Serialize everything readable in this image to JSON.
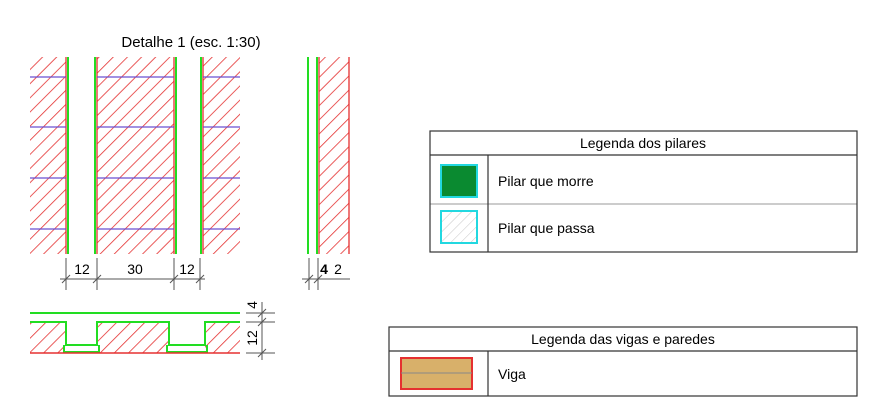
{
  "detail": {
    "title": "Detalhe 1 (esc. 1:30)",
    "dims_plan": [
      "12",
      "30",
      "12"
    ],
    "dim_right_a": "4",
    "dim_right_b": "2",
    "dims_section": [
      "4",
      "12"
    ]
  },
  "legend_pillars": {
    "title": "Legenda dos pilares",
    "items": [
      {
        "label": "Pilar que morre",
        "swatch": "solid-green"
      },
      {
        "label": "Pilar que passa",
        "swatch": "hatched-cyan"
      }
    ]
  },
  "legend_beams": {
    "title": "Legenda das vigas e paredes",
    "items": [
      {
        "label": "Viga",
        "swatch": "tan-with-line"
      }
    ]
  },
  "colors": {
    "wall_hatch": "#e53030",
    "beam_line": "#22dd22",
    "grid_line": "#6a4fd0",
    "pillar_dies": "#0a8a30",
    "pillar_passes_border": "#22d8e0",
    "beam_fill": "#d8b06a",
    "beam_border": "#e53030"
  }
}
